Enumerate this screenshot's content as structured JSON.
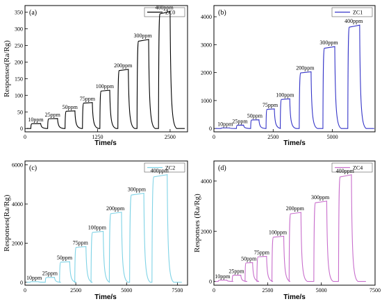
{
  "chart_data": [
    {
      "type": "line",
      "panel_label": "(a)",
      "legend": "ZC0",
      "color": "#000000",
      "xlabel": "Time/s",
      "ylabel": "Responses(Ra/Rg)",
      "xlim": [
        0,
        2800
      ],
      "ylim": [
        -10,
        370
      ],
      "xticks": [
        0,
        1250,
        2500
      ],
      "yticks": [
        0,
        50,
        100,
        150,
        200,
        250,
        300,
        350
      ],
      "pulses": [
        {
          "label": "10ppm",
          "start": 100,
          "end": 270,
          "peak": 15
        },
        {
          "label": "25ppm",
          "start": 390,
          "end": 560,
          "peak": 30
        },
        {
          "label": "50ppm",
          "start": 690,
          "end": 860,
          "peak": 53
        },
        {
          "label": "75ppm",
          "start": 990,
          "end": 1160,
          "peak": 78
        },
        {
          "label": "100ppm",
          "start": 1290,
          "end": 1460,
          "peak": 115
        },
        {
          "label": "200ppm",
          "start": 1600,
          "end": 1780,
          "peak": 178
        },
        {
          "label": "300ppm",
          "start": 1930,
          "end": 2130,
          "peak": 268
        },
        {
          "label": "400ppm",
          "start": 2300,
          "end": 2500,
          "peak": 352
        }
      ]
    },
    {
      "type": "line",
      "panel_label": "(b)",
      "legend": "ZC1",
      "color": "#3434c8",
      "xlabel": "Time/s",
      "ylabel": "",
      "xlim": [
        0,
        6800
      ],
      "ylim": [
        -120,
        4400
      ],
      "xticks": [
        0,
        2500,
        5000
      ],
      "yticks": [
        0,
        1000,
        2000,
        3000,
        4000
      ],
      "pulses": [
        {
          "label": "10ppm",
          "start": 300,
          "end": 650,
          "peak": 20
        },
        {
          "label": "25ppm",
          "start": 950,
          "end": 1250,
          "peak": 120
        },
        {
          "label": "50ppm",
          "start": 1550,
          "end": 1900,
          "peak": 310
        },
        {
          "label": "75ppm",
          "start": 2200,
          "end": 2550,
          "peak": 700
        },
        {
          "label": "100ppm",
          "start": 2800,
          "end": 3200,
          "peak": 1060
        },
        {
          "label": "200ppm",
          "start": 3600,
          "end": 4100,
          "peak": 2030
        },
        {
          "label": "300ppm",
          "start": 4600,
          "end": 5100,
          "peak": 2930
        },
        {
          "label": "400ppm",
          "start": 5650,
          "end": 6150,
          "peak": 3700
        }
      ]
    },
    {
      "type": "line",
      "panel_label": "(c)",
      "legend": "ZC2",
      "color": "#7fd3e6",
      "xlabel": "Time/s",
      "ylabel": "Responses(Ra/Rg)",
      "xlim": [
        0,
        8000
      ],
      "ylim": [
        -150,
        6200
      ],
      "xticks": [
        0,
        2500,
        5000,
        7500
      ],
      "yticks": [
        0,
        2000,
        4000,
        6000
      ],
      "pulses": [
        {
          "label": "10ppm",
          "start": 250,
          "end": 650,
          "peak": 30
        },
        {
          "label": "25ppm",
          "start": 1000,
          "end": 1450,
          "peak": 250
        },
        {
          "label": "50ppm",
          "start": 1700,
          "end": 2200,
          "peak": 1050
        },
        {
          "label": "75ppm",
          "start": 2450,
          "end": 3000,
          "peak": 1820
        },
        {
          "label": "100ppm",
          "start": 3250,
          "end": 3850,
          "peak": 2600
        },
        {
          "label": "200ppm",
          "start": 4150,
          "end": 4750,
          "peak": 3580
        },
        {
          "label": "300ppm",
          "start": 5150,
          "end": 5850,
          "peak": 4550
        },
        {
          "label": "400ppm",
          "start": 6250,
          "end": 7000,
          "peak": 5500
        }
      ]
    },
    {
      "type": "line",
      "panel_label": "(d)",
      "legend": "ZC4",
      "color": "#c86ecc",
      "xlabel": "Time/s",
      "ylabel": "Responses (Ra/Rg)",
      "xlim": [
        0,
        7500
      ],
      "ylim": [
        -150,
        4800
      ],
      "xticks": [
        0,
        2500,
        5000,
        7500
      ],
      "yticks": [
        0,
        2000,
        4000
      ],
      "pulses": [
        {
          "label": "10ppm",
          "start": 200,
          "end": 600,
          "peak": 50
        },
        {
          "label": "25ppm",
          "start": 850,
          "end": 1250,
          "peak": 250
        },
        {
          "label": "50ppm",
          "start": 1450,
          "end": 1800,
          "peak": 750
        },
        {
          "label": "75ppm",
          "start": 2000,
          "end": 2450,
          "peak": 1000
        },
        {
          "label": "100ppm",
          "start": 2700,
          "end": 3250,
          "peak": 1800
        },
        {
          "label": "200ppm",
          "start": 3500,
          "end": 4050,
          "peak": 2750
        },
        {
          "label": "300ppm",
          "start": 4650,
          "end": 5250,
          "peak": 3200
        },
        {
          "label": "400ppm",
          "start": 5800,
          "end": 6400,
          "peak": 4250
        }
      ]
    }
  ]
}
